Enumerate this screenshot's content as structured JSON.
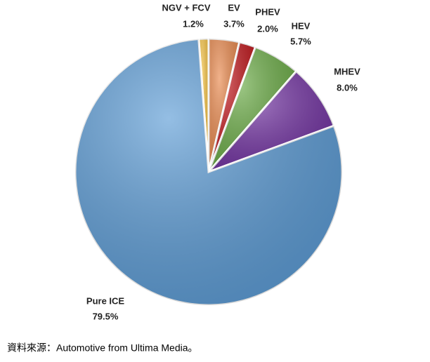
{
  "chart_data": {
    "type": "pie",
    "categories": [
      "NGV + FCV",
      "EV",
      "PHEV",
      "HEV",
      "MHEV",
      "Pure ICE"
    ],
    "values": [
      1.2,
      3.7,
      2.0,
      5.7,
      8.0,
      79.5
    ],
    "value_labels": [
      "1.2%",
      "3.7%",
      "2.0%",
      "5.7%",
      "8.0%",
      "79.5%"
    ],
    "colors": [
      "#f6c343",
      "#e9884c",
      "#c1161b",
      "#6aab45",
      "#7131a1",
      "#5b9bd5"
    ]
  },
  "source": "資料來源：Automotive from Ultima Media。"
}
